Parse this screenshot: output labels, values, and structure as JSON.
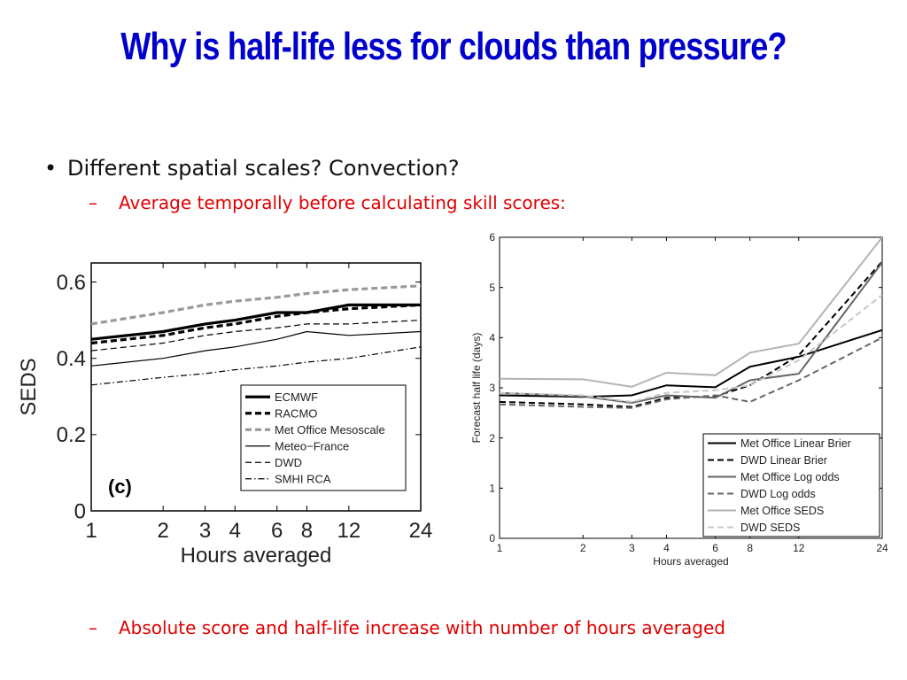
{
  "slide": {
    "title": "Why is half-life less for clouds than pressure?",
    "bullet": "Different spatial scales? Convection?",
    "dash": "–",
    "bullet_mark": "•",
    "sub1": "Average temporally before calculating skill scores:",
    "sub2": "Absolute score and half-life increase with number of hours averaged"
  },
  "chart_data": [
    {
      "type": "line",
      "xscale": "log",
      "x": [
        1,
        2,
        3,
        4,
        6,
        8,
        12,
        24
      ],
      "xticks": [
        "1",
        "2",
        "3",
        "4",
        "6",
        "8",
        "12",
        "24"
      ],
      "yticks": [
        "0",
        "0.2",
        "0.4",
        "0.6"
      ],
      "ylim": [
        0,
        0.65
      ],
      "xlabel": "Hours averaged",
      "ylabel": "SEDS",
      "panel_label": "(c)",
      "legend_position": "bottom-right",
      "series": [
        {
          "name": "ECMWF",
          "style": "solid-thick",
          "color": "#000000",
          "values": [
            0.45,
            0.47,
            0.49,
            0.5,
            0.52,
            0.52,
            0.54,
            0.54
          ]
        },
        {
          "name": "RACMO",
          "style": "dashed-thick",
          "color": "#000000",
          "values": [
            0.44,
            0.46,
            0.48,
            0.49,
            0.51,
            0.52,
            0.53,
            0.54
          ]
        },
        {
          "name": "Met Office Mesoscale",
          "style": "dashed-thick",
          "color": "#999999",
          "values": [
            0.49,
            0.52,
            0.54,
            0.55,
            0.56,
            0.57,
            0.58,
            0.59
          ]
        },
        {
          "name": "Meteo−France",
          "style": "solid-thin",
          "color": "#000000",
          "values": [
            0.38,
            0.4,
            0.42,
            0.43,
            0.45,
            0.47,
            0.46,
            0.47
          ]
        },
        {
          "name": "DWD",
          "style": "dashed-thin",
          "color": "#000000",
          "values": [
            0.42,
            0.44,
            0.46,
            0.47,
            0.48,
            0.49,
            0.49,
            0.5
          ]
        },
        {
          "name": "SMHI RCA",
          "style": "dashdot-thin",
          "color": "#000000",
          "values": [
            0.33,
            0.35,
            0.36,
            0.37,
            0.38,
            0.39,
            0.4,
            0.43
          ]
        }
      ]
    },
    {
      "type": "line",
      "xscale": "log",
      "x": [
        1,
        2,
        3,
        4,
        6,
        8,
        12,
        24
      ],
      "xticks": [
        "1",
        "2",
        "3",
        "4",
        "6",
        "8",
        "12",
        "24"
      ],
      "yticks": [
        "0",
        "1",
        "2",
        "3",
        "4",
        "5",
        "6"
      ],
      "ylim": [
        0,
        6
      ],
      "xlabel": "Hours averaged",
      "ylabel": "Forecast half life (days)",
      "legend_position": "bottom-right",
      "series": [
        {
          "name": "Met Office Linear Brier",
          "style": "solid-thick",
          "color": "#000000",
          "values": [
            2.85,
            2.82,
            2.85,
            3.05,
            3.01,
            3.42,
            3.62,
            4.15
          ]
        },
        {
          "name": "DWD Linear Brier",
          "style": "dashed-thick",
          "color": "#000000",
          "values": [
            2.72,
            2.67,
            2.62,
            2.8,
            2.83,
            3.05,
            3.65,
            5.52
          ]
        },
        {
          "name": "Met Office Log odds",
          "style": "solid-thick",
          "color": "#666666",
          "values": [
            2.9,
            2.83,
            2.7,
            2.85,
            2.8,
            3.15,
            3.28,
            5.5
          ]
        },
        {
          "name": "DWD Log odds",
          "style": "dashed-thick",
          "color": "#666666",
          "values": [
            2.67,
            2.62,
            2.6,
            2.77,
            2.85,
            2.72,
            3.15,
            4.0
          ]
        },
        {
          "name": "Met Office SEDS",
          "style": "solid-thick",
          "color": "#b3b3b3",
          "values": [
            3.18,
            3.17,
            3.02,
            3.3,
            3.25,
            3.7,
            3.88,
            6.0
          ]
        },
        {
          "name": "DWD SEDS",
          "style": "dashed-thick",
          "color": "#c8c8c8",
          "values": [
            2.9,
            2.85,
            2.72,
            2.9,
            2.95,
            3.05,
            3.55,
            4.85
          ]
        }
      ]
    }
  ]
}
